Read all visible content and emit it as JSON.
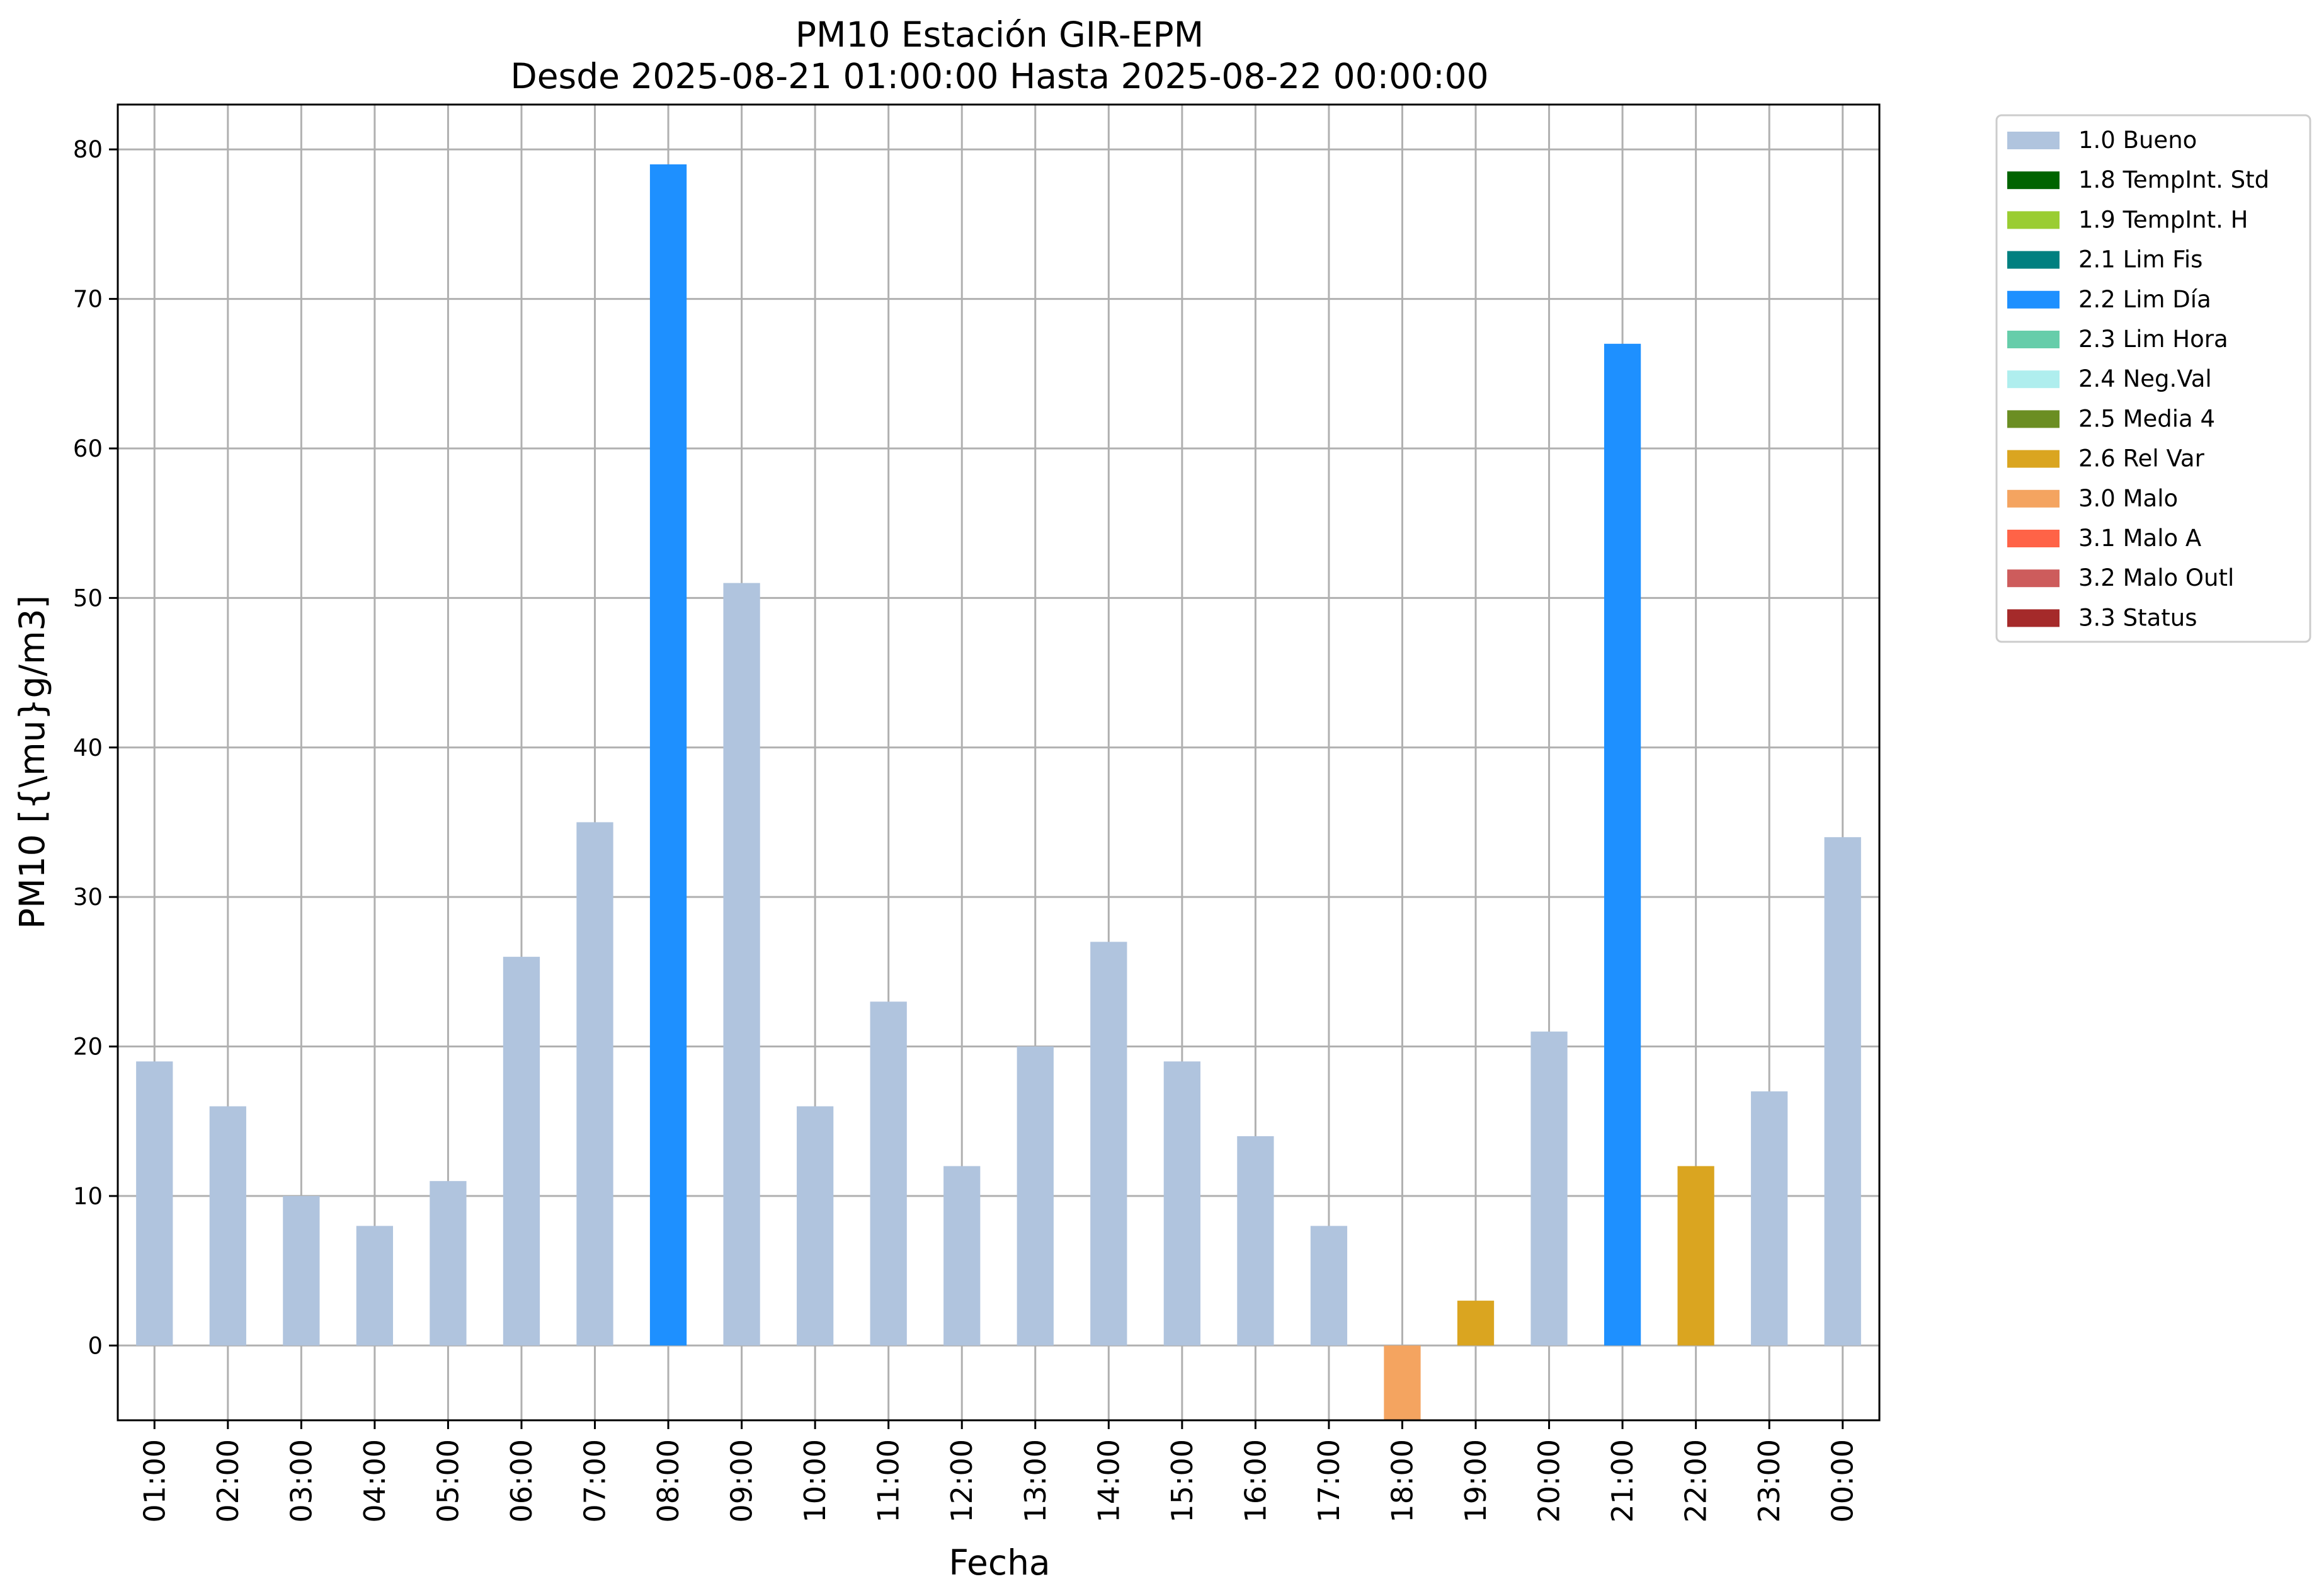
{
  "chart_data": {
    "type": "bar",
    "title": "PM10 Estación GIR-EPM",
    "subtitle": "Desde 2025-08-21 01:00:00 Hasta 2025-08-22 00:00:00",
    "xlabel": "Fecha",
    "ylabel": "PM10 [{\\mu}g/m3]",
    "ylim": [
      -5,
      83
    ],
    "yticks": [
      0,
      10,
      20,
      30,
      40,
      50,
      60,
      70,
      80
    ],
    "grid": true,
    "legend_placement": "outside-right-top",
    "categories": [
      "01:00",
      "02:00",
      "03:00",
      "04:00",
      "05:00",
      "06:00",
      "07:00",
      "08:00",
      "09:00",
      "10:00",
      "11:00",
      "12:00",
      "13:00",
      "14:00",
      "15:00",
      "16:00",
      "17:00",
      "18:00",
      "19:00",
      "20:00",
      "21:00",
      "22:00",
      "23:00",
      "00:00"
    ],
    "values": [
      19,
      16,
      10,
      8,
      11,
      26,
      35,
      79,
      51,
      16,
      23,
      12,
      20,
      27,
      19,
      14,
      8,
      -5,
      3,
      21,
      67,
      12,
      17,
      34
    ],
    "flags": [
      "1.0 Bueno",
      "1.0 Bueno",
      "1.0 Bueno",
      "1.0 Bueno",
      "1.0 Bueno",
      "1.0 Bueno",
      "1.0 Bueno",
      "2.2 Lim Día",
      "1.0 Bueno",
      "1.0 Bueno",
      "1.0 Bueno",
      "1.0 Bueno",
      "1.0 Bueno",
      "1.0 Bueno",
      "1.0 Bueno",
      "1.0 Bueno",
      "1.0 Bueno",
      "3.0 Malo",
      "2.6 Rel Var",
      "1.0 Bueno",
      "2.2 Lim Día",
      "2.6 Rel Var",
      "1.0 Bueno",
      "1.0 Bueno"
    ],
    "legend": [
      {
        "label": "1.0 Bueno",
        "color": "#b0c4de"
      },
      {
        "label": "1.8 TempInt. Std",
        "color": "#006400"
      },
      {
        "label": "1.9 TempInt. H",
        "color": "#9acd32"
      },
      {
        "label": "2.1 Lim Fis",
        "color": "#008080"
      },
      {
        "label": "2.2 Lim Día",
        "color": "#1e90ff"
      },
      {
        "label": "2.3 Lim Hora",
        "color": "#66cdaa"
      },
      {
        "label": "2.4 Neg.Val",
        "color": "#afeeee"
      },
      {
        "label": "2.5 Media 4",
        "color": "#6b8e23"
      },
      {
        "label": "2.6 Rel Var",
        "color": "#daa520"
      },
      {
        "label": "3.0 Malo",
        "color": "#f4a460"
      },
      {
        "label": "3.1 Malo A",
        "color": "#ff6347"
      },
      {
        "label": "3.2 Malo Outl",
        "color": "#cd5c5c"
      },
      {
        "label": "3.3 Status",
        "color": "#a52a2a"
      }
    ]
  }
}
